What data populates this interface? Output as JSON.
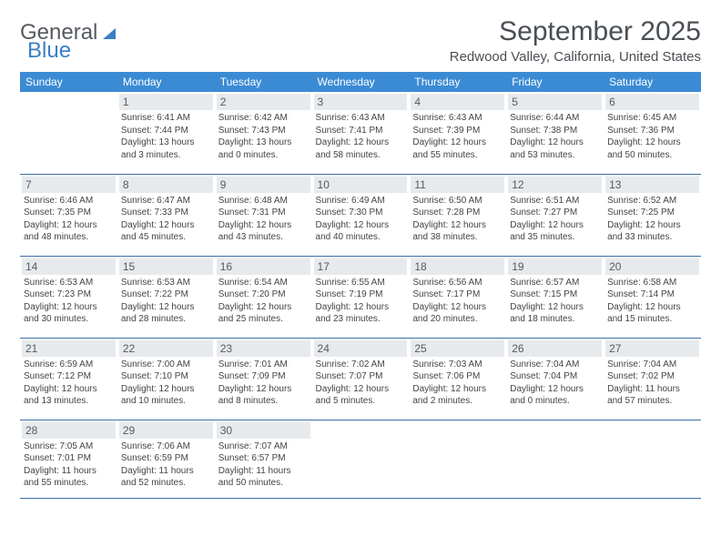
{
  "logo": {
    "text1": "General",
    "text2": "Blue"
  },
  "title": "September 2025",
  "location": "Redwood Valley, California, United States",
  "colors": {
    "header_bg": "#3b8bd4",
    "header_text": "#ffffff",
    "daynum_bg": "#e7eaed",
    "border": "#3b6fa8",
    "logo_gray": "#555a60",
    "logo_blue": "#3b7fc4",
    "text": "#444444"
  },
  "weekdays": [
    "Sunday",
    "Monday",
    "Tuesday",
    "Wednesday",
    "Thursday",
    "Friday",
    "Saturday"
  ],
  "weeks": [
    [
      null,
      {
        "d": "1",
        "sr": "Sunrise: 6:41 AM",
        "ss": "Sunset: 7:44 PM",
        "dl": "Daylight: 13 hours and 3 minutes."
      },
      {
        "d": "2",
        "sr": "Sunrise: 6:42 AM",
        "ss": "Sunset: 7:43 PM",
        "dl": "Daylight: 13 hours and 0 minutes."
      },
      {
        "d": "3",
        "sr": "Sunrise: 6:43 AM",
        "ss": "Sunset: 7:41 PM",
        "dl": "Daylight: 12 hours and 58 minutes."
      },
      {
        "d": "4",
        "sr": "Sunrise: 6:43 AM",
        "ss": "Sunset: 7:39 PM",
        "dl": "Daylight: 12 hours and 55 minutes."
      },
      {
        "d": "5",
        "sr": "Sunrise: 6:44 AM",
        "ss": "Sunset: 7:38 PM",
        "dl": "Daylight: 12 hours and 53 minutes."
      },
      {
        "d": "6",
        "sr": "Sunrise: 6:45 AM",
        "ss": "Sunset: 7:36 PM",
        "dl": "Daylight: 12 hours and 50 minutes."
      }
    ],
    [
      {
        "d": "7",
        "sr": "Sunrise: 6:46 AM",
        "ss": "Sunset: 7:35 PM",
        "dl": "Daylight: 12 hours and 48 minutes."
      },
      {
        "d": "8",
        "sr": "Sunrise: 6:47 AM",
        "ss": "Sunset: 7:33 PM",
        "dl": "Daylight: 12 hours and 45 minutes."
      },
      {
        "d": "9",
        "sr": "Sunrise: 6:48 AM",
        "ss": "Sunset: 7:31 PM",
        "dl": "Daylight: 12 hours and 43 minutes."
      },
      {
        "d": "10",
        "sr": "Sunrise: 6:49 AM",
        "ss": "Sunset: 7:30 PM",
        "dl": "Daylight: 12 hours and 40 minutes."
      },
      {
        "d": "11",
        "sr": "Sunrise: 6:50 AM",
        "ss": "Sunset: 7:28 PM",
        "dl": "Daylight: 12 hours and 38 minutes."
      },
      {
        "d": "12",
        "sr": "Sunrise: 6:51 AM",
        "ss": "Sunset: 7:27 PM",
        "dl": "Daylight: 12 hours and 35 minutes."
      },
      {
        "d": "13",
        "sr": "Sunrise: 6:52 AM",
        "ss": "Sunset: 7:25 PM",
        "dl": "Daylight: 12 hours and 33 minutes."
      }
    ],
    [
      {
        "d": "14",
        "sr": "Sunrise: 6:53 AM",
        "ss": "Sunset: 7:23 PM",
        "dl": "Daylight: 12 hours and 30 minutes."
      },
      {
        "d": "15",
        "sr": "Sunrise: 6:53 AM",
        "ss": "Sunset: 7:22 PM",
        "dl": "Daylight: 12 hours and 28 minutes."
      },
      {
        "d": "16",
        "sr": "Sunrise: 6:54 AM",
        "ss": "Sunset: 7:20 PM",
        "dl": "Daylight: 12 hours and 25 minutes."
      },
      {
        "d": "17",
        "sr": "Sunrise: 6:55 AM",
        "ss": "Sunset: 7:19 PM",
        "dl": "Daylight: 12 hours and 23 minutes."
      },
      {
        "d": "18",
        "sr": "Sunrise: 6:56 AM",
        "ss": "Sunset: 7:17 PM",
        "dl": "Daylight: 12 hours and 20 minutes."
      },
      {
        "d": "19",
        "sr": "Sunrise: 6:57 AM",
        "ss": "Sunset: 7:15 PM",
        "dl": "Daylight: 12 hours and 18 minutes."
      },
      {
        "d": "20",
        "sr": "Sunrise: 6:58 AM",
        "ss": "Sunset: 7:14 PM",
        "dl": "Daylight: 12 hours and 15 minutes."
      }
    ],
    [
      {
        "d": "21",
        "sr": "Sunrise: 6:59 AM",
        "ss": "Sunset: 7:12 PM",
        "dl": "Daylight: 12 hours and 13 minutes."
      },
      {
        "d": "22",
        "sr": "Sunrise: 7:00 AM",
        "ss": "Sunset: 7:10 PM",
        "dl": "Daylight: 12 hours and 10 minutes."
      },
      {
        "d": "23",
        "sr": "Sunrise: 7:01 AM",
        "ss": "Sunset: 7:09 PM",
        "dl": "Daylight: 12 hours and 8 minutes."
      },
      {
        "d": "24",
        "sr": "Sunrise: 7:02 AM",
        "ss": "Sunset: 7:07 PM",
        "dl": "Daylight: 12 hours and 5 minutes."
      },
      {
        "d": "25",
        "sr": "Sunrise: 7:03 AM",
        "ss": "Sunset: 7:06 PM",
        "dl": "Daylight: 12 hours and 2 minutes."
      },
      {
        "d": "26",
        "sr": "Sunrise: 7:04 AM",
        "ss": "Sunset: 7:04 PM",
        "dl": "Daylight: 12 hours and 0 minutes."
      },
      {
        "d": "27",
        "sr": "Sunrise: 7:04 AM",
        "ss": "Sunset: 7:02 PM",
        "dl": "Daylight: 11 hours and 57 minutes."
      }
    ],
    [
      {
        "d": "28",
        "sr": "Sunrise: 7:05 AM",
        "ss": "Sunset: 7:01 PM",
        "dl": "Daylight: 11 hours and 55 minutes."
      },
      {
        "d": "29",
        "sr": "Sunrise: 7:06 AM",
        "ss": "Sunset: 6:59 PM",
        "dl": "Daylight: 11 hours and 52 minutes."
      },
      {
        "d": "30",
        "sr": "Sunrise: 7:07 AM",
        "ss": "Sunset: 6:57 PM",
        "dl": "Daylight: 11 hours and 50 minutes."
      },
      null,
      null,
      null,
      null
    ]
  ]
}
